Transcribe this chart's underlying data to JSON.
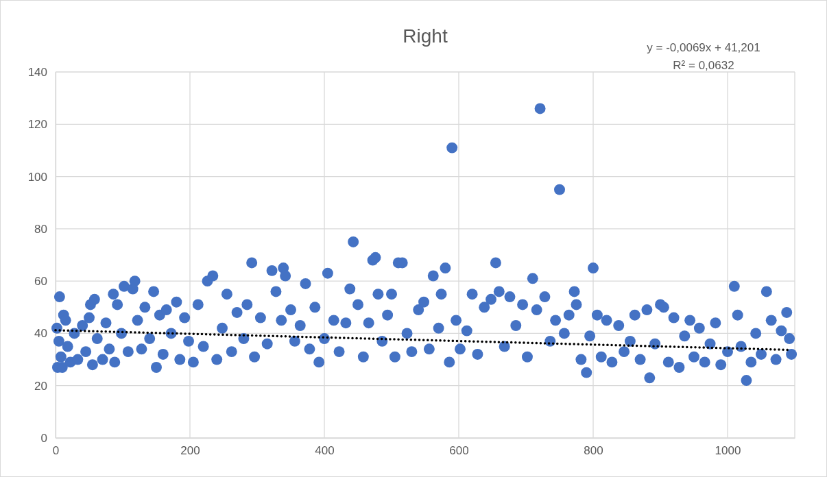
{
  "chart_data": {
    "type": "scatter",
    "title": "Right",
    "annotations": [
      "y = -0,0069x + 41,201",
      "R² = 0,0632"
    ],
    "xlim": [
      0,
      1100
    ],
    "xticks": [
      0,
      200,
      400,
      600,
      800,
      1000
    ],
    "ylim": [
      0,
      140
    ],
    "yticks": [
      0,
      20,
      40,
      60,
      80,
      100,
      120,
      140
    ],
    "grid": true,
    "series": [
      {
        "color": "#4472c4",
        "marker": "circle",
        "x": [
          2,
          3,
          5,
          6,
          8,
          10,
          12,
          15,
          18,
          22,
          28,
          33,
          40,
          45,
          50,
          52,
          55,
          58,
          62,
          70,
          75,
          80,
          86,
          88,
          92,
          98,
          102,
          108,
          115,
          118,
          122,
          128,
          133,
          140,
          146,
          150,
          155,
          160,
          165,
          172,
          180,
          185,
          192,
          198,
          205,
          212,
          220,
          226,
          234,
          240,
          248,
          255,
          262,
          270,
          280,
          285,
          292,
          296,
          305,
          315,
          322,
          328,
          336,
          339,
          342,
          350,
          356,
          364,
          372,
          378,
          386,
          392,
          400,
          405,
          414,
          422,
          432,
          438,
          443,
          450,
          458,
          466,
          472,
          476,
          480,
          486,
          494,
          500,
          505,
          510,
          516,
          523,
          530,
          540,
          548,
          556,
          562,
          570,
          574,
          580,
          586,
          590,
          596,
          602,
          612,
          620,
          628,
          638,
          648,
          655,
          660,
          668,
          676,
          685,
          695,
          702,
          710,
          716,
          721,
          728,
          736,
          744,
          750,
          757,
          764,
          772,
          775,
          782,
          790,
          795,
          800,
          806,
          812,
          820,
          828,
          838,
          846,
          855,
          862,
          870,
          880,
          884,
          892,
          900,
          905,
          912,
          920,
          928,
          936,
          944,
          950,
          958,
          966,
          974,
          982,
          990,
          1000,
          1010,
          1015,
          1020,
          1028,
          1035,
          1042,
          1050,
          1058,
          1065,
          1072,
          1080,
          1088,
          1092,
          1095
        ],
        "values": [
          42,
          27,
          37,
          54,
          31,
          27,
          47,
          45,
          35,
          29,
          40,
          30,
          43,
          33,
          46,
          51,
          28,
          53,
          38,
          30,
          44,
          34,
          55,
          29,
          51,
          40,
          58,
          33,
          57,
          60,
          45,
          34,
          50,
          38,
          56,
          27,
          47,
          32,
          49,
          40,
          52,
          30,
          46,
          37,
          29,
          51,
          35,
          60,
          62,
          30,
          42,
          55,
          33,
          48,
          38,
          51,
          67,
          31,
          46,
          36,
          64,
          56,
          45,
          65,
          62,
          49,
          37,
          43,
          59,
          34,
          50,
          29,
          38,
          63,
          45,
          33,
          44,
          57,
          75,
          51,
          31,
          44,
          68,
          69,
          55,
          37,
          47,
          55,
          31,
          67,
          67,
          40,
          33,
          49,
          52,
          34,
          62,
          42,
          55,
          65,
          29,
          111,
          45,
          34,
          41,
          55,
          32,
          50,
          53,
          67,
          56,
          35,
          54,
          43,
          51,
          31,
          61,
          49,
          126,
          54,
          37,
          45,
          95,
          40,
          47,
          56,
          51,
          30,
          25,
          39,
          65,
          47,
          31,
          45,
          29,
          43,
          33,
          37,
          47,
          30,
          49,
          23,
          36,
          51,
          50,
          29,
          46,
          27,
          39,
          45,
          31,
          42,
          29,
          36,
          44,
          28,
          33,
          58,
          47,
          35,
          22,
          29,
          40,
          32,
          56,
          45,
          30,
          41,
          48,
          38,
          32
        ]
      },
      {
        "type": "line",
        "color": "#000000",
        "line_style": "dotted",
        "marker": "none",
        "x": [
          0,
          1092
        ],
        "values": [
          41.2,
          33.7
        ]
      }
    ]
  }
}
